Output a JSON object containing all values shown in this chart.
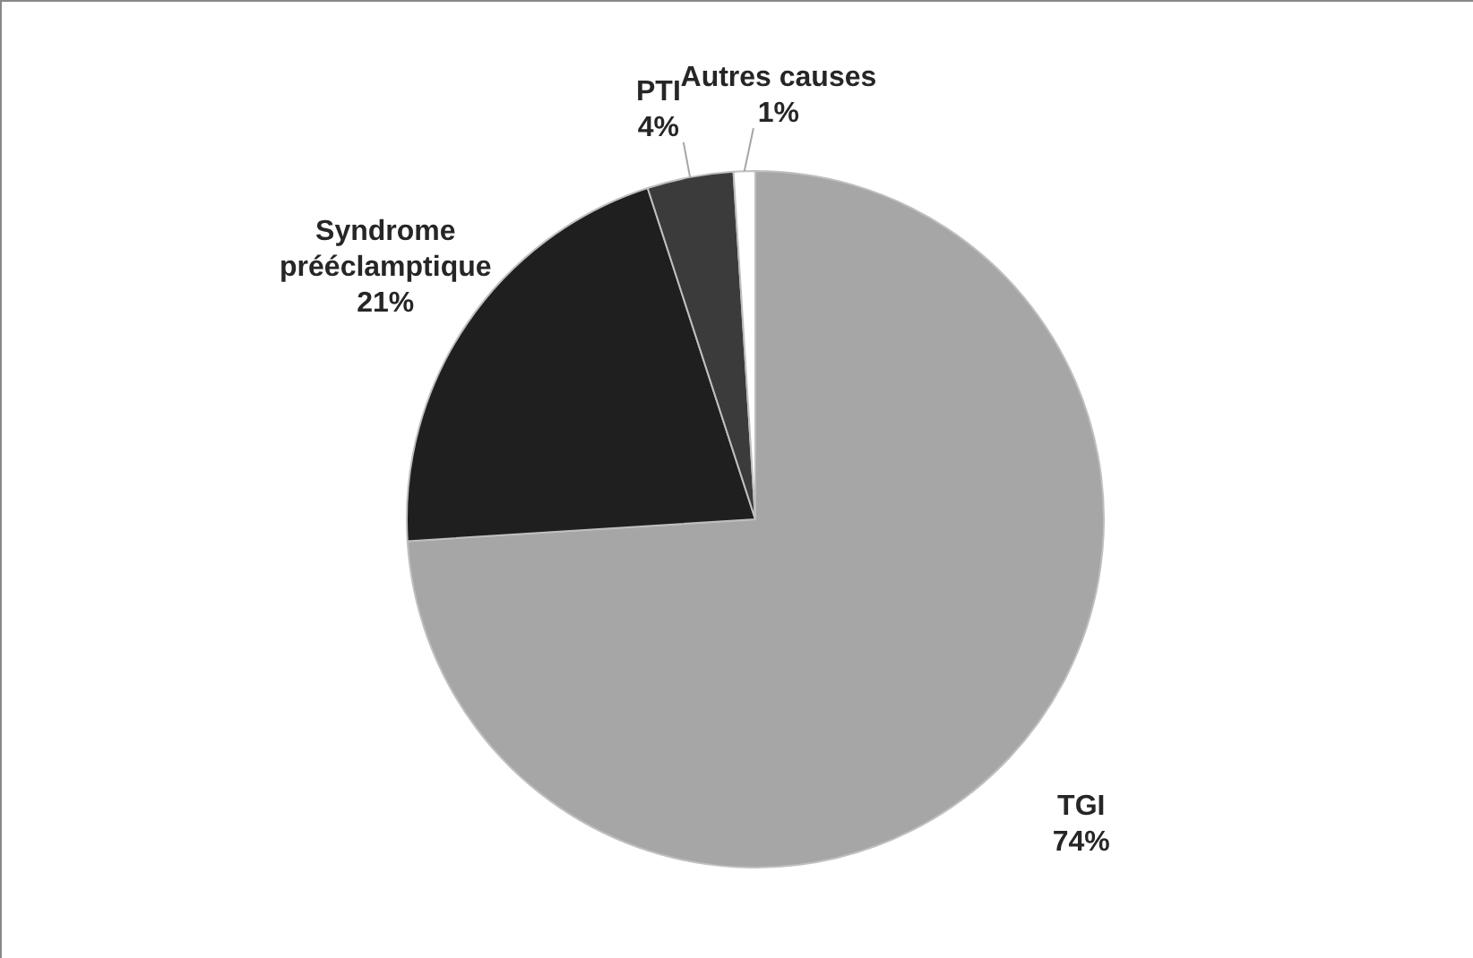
{
  "chart_data": {
    "type": "pie",
    "categories": [
      "TGI",
      "Syndrome prééclamptique",
      "PTI",
      "Autres causes"
    ],
    "values": [
      74,
      21,
      4,
      1
    ],
    "colors": [
      "#a6a6a6",
      "#1f1f1f",
      "#3b3b3b",
      "#ffffff"
    ],
    "value_labels": [
      "74%",
      "21%",
      "4%",
      "1%"
    ],
    "legend": false
  }
}
